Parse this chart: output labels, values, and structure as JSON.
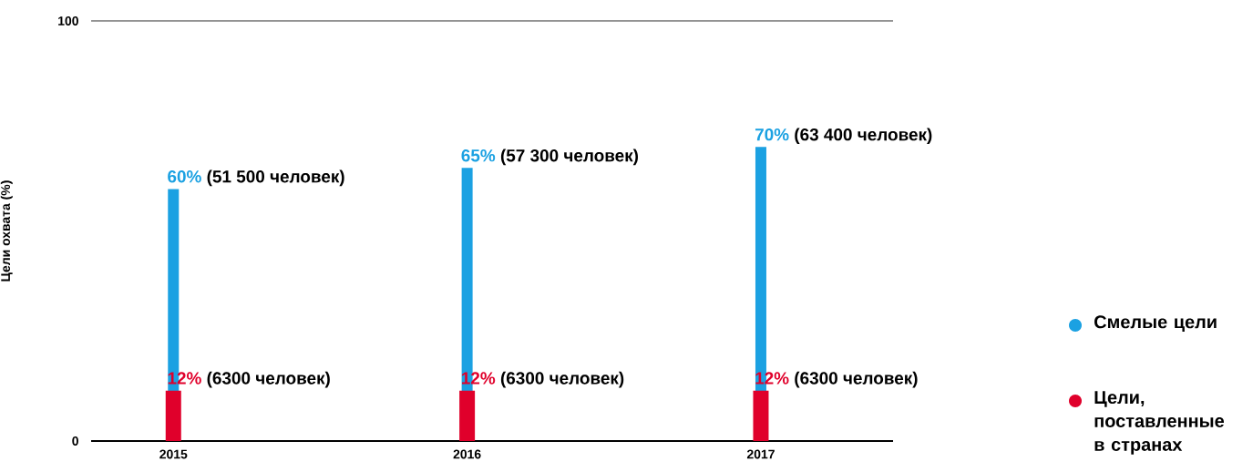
{
  "chart_data": {
    "type": "bar",
    "ylabel": "Цели охвата (%)",
    "categories": [
      "2015",
      "2016",
      "2017"
    ],
    "series": [
      {
        "name": "Смелые цели",
        "color": "#1ba1e2",
        "values": [
          60,
          65,
          70
        ],
        "value_labels": [
          "60%",
          "65%",
          "70%"
        ]
      },
      {
        "name": "Цели, поставленные в странах",
        "color": "#e0002b",
        "values": [
          12,
          12,
          12
        ],
        "value_labels": [
          "12%",
          "12%",
          "12%"
        ]
      }
    ],
    "ylim": [
      0,
      100
    ],
    "yticks": [
      0,
      100
    ],
    "grid": "y",
    "legend": "right",
    "annotations": [
      {
        "text": "(51 500 человек)",
        "x": "2015",
        "y": 60
      },
      {
        "text": "(57 300 человек)",
        "x": "2016",
        "y": 65
      },
      {
        "text": "(63 400 человек)",
        "x": "2017",
        "y": 70
      },
      {
        "text": "(6300 человек)",
        "x": "2015",
        "y": 12
      },
      {
        "text": "(6300 человек)",
        "x": "2016",
        "y": 12
      },
      {
        "text": "(6300 человек)",
        "x": "2017",
        "y": 12
      }
    ]
  }
}
